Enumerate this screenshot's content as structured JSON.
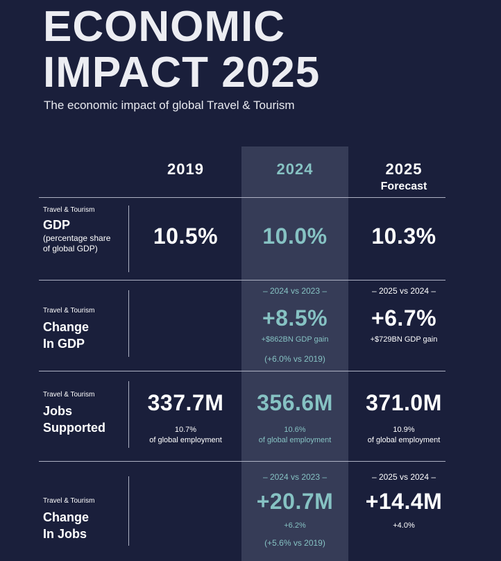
{
  "header": {
    "title_line1": "ECONOMIC",
    "title_line2": "IMPACT 2025",
    "subtitle": "The economic impact of global Travel & Tourism"
  },
  "columns": {
    "c2019": "2019",
    "c2024": "2024",
    "c2025": "2025",
    "forecast": "Forecast"
  },
  "rows": {
    "gdp": {
      "small": "Travel & Tourism",
      "label": "GDP",
      "paren1": "(percentage share",
      "paren2": "of global GDP)",
      "v2019": "10.5%",
      "v2024": "10.0%",
      "v2025": "10.3%"
    },
    "change_gdp": {
      "small": "Travel & Tourism",
      "label1": "Change",
      "label2": "In GDP",
      "cmp2024": "– 2024 vs 2023 –",
      "v2024": "+8.5%",
      "note2024": "+$862BN GDP gain",
      "sub2024": "(+6.0% vs 2019)",
      "cmp2025": "– 2025 vs 2024 –",
      "v2025": "+6.7%",
      "note2025": "+$729BN GDP gain"
    },
    "jobs": {
      "small": "Travel & Tourism",
      "label1": "Jobs",
      "label2": "Supported",
      "v2019": "337.7M",
      "p2019": "10.7%",
      "cap2019": "of global employment",
      "v2024": "356.6M",
      "p2024": "10.6%",
      "cap2024": "of global employment",
      "v2025": "371.0M",
      "p2025": "10.9%",
      "cap2025": "of global employment"
    },
    "change_jobs": {
      "small": "Travel & Tourism",
      "label1": "Change",
      "label2": "In Jobs",
      "cmp2024": "– 2024 vs 2023 –",
      "v2024": "+20.7M",
      "note2024": "+6.2%",
      "sub2024": "(+5.6% vs 2019)",
      "cmp2025": "– 2025 vs 2024 –",
      "v2025": "+14.4M",
      "note2025": "+4.0%"
    }
  },
  "colors": {
    "background": "#1a1f3b",
    "highlight_column": "#363c57",
    "accent_teal": "#86c2c3"
  }
}
